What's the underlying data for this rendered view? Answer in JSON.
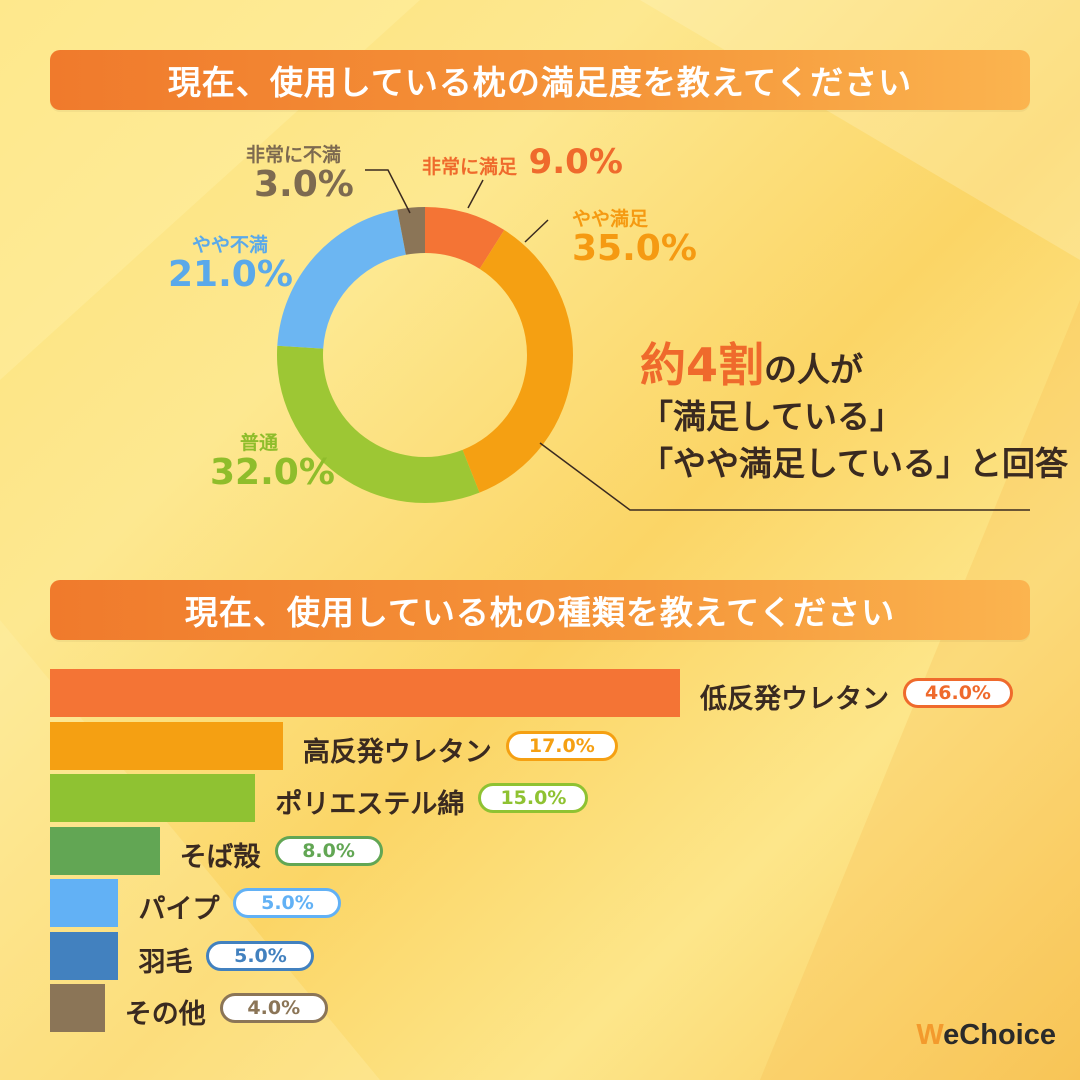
{
  "titles": {
    "satisfaction": "現在、使用している枕の満足度を教えてください",
    "type": "現在、使用している枕の種類を教えてください"
  },
  "callout": {
    "em": "約4割",
    "line1_rest": "の人が",
    "line2": "「満足している」",
    "line3": "「やや満足している」と回答"
  },
  "brand": {
    "w": "W",
    "rest": "eChoice"
  },
  "chart_data": [
    {
      "type": "pie",
      "title": "現在、使用している枕の満足度を教えてください",
      "categories": [
        "非常に満足",
        "やや満足",
        "普通",
        "やや不満",
        "非常に不満"
      ],
      "values": [
        9.0,
        35.0,
        32.0,
        21.0,
        3.0
      ],
      "value_labels": [
        "9.0%",
        "35.0%",
        "32.0%",
        "21.0%",
        "3.0%"
      ],
      "colors": [
        "#f47435",
        "#f5a012",
        "#9dc734",
        "#6cb6f2",
        "#8b7557"
      ]
    },
    {
      "type": "bar",
      "orientation": "horizontal",
      "title": "現在、使用している枕の種類を教えてください",
      "categories": [
        "低反発ウレタン",
        "高反発ウレタン",
        "ポリエステル綿",
        "そば殻",
        "パイプ",
        "羽毛",
        "その他"
      ],
      "values": [
        46.0,
        17.0,
        15.0,
        8.0,
        5.0,
        5.0,
        4.0
      ],
      "value_labels": [
        "46.0%",
        "17.0%",
        "15.0%",
        "8.0%",
        "5.0%",
        "5.0%",
        "4.0%"
      ],
      "colors": [
        "#f47435",
        "#f5a012",
        "#8fc232",
        "#62a654",
        "#62b1f5",
        "#4281bf",
        "#8b7557"
      ],
      "label_colors": [
        "#ef6a2c",
        "#f5a012",
        "#8fc232",
        "#62a654",
        "#62b1f5",
        "#4281bf",
        "#8b7557"
      ]
    }
  ]
}
